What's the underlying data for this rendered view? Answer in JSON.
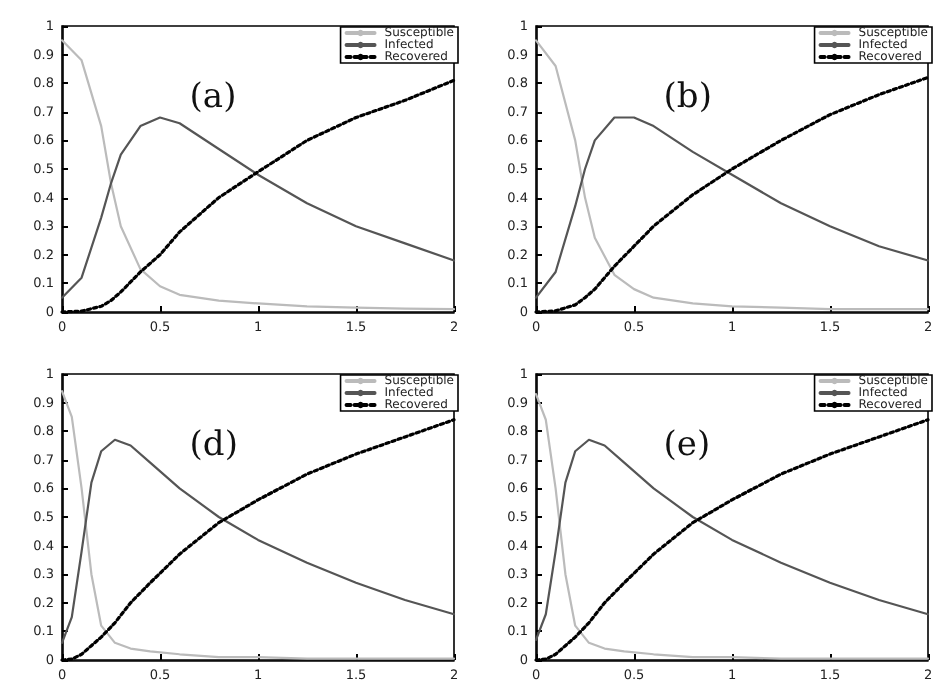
{
  "chart_data": [
    {
      "type": "line",
      "annotations": [
        "(a)"
      ],
      "x": [
        0,
        0.1,
        0.2,
        0.25,
        0.3,
        0.4,
        0.5,
        0.6,
        0.8,
        1,
        1.25,
        1.5,
        1.75,
        2
      ],
      "xlim": [
        0,
        2
      ],
      "xticks": [
        0,
        0.5,
        1,
        1.5,
        2
      ],
      "ylim": [
        0,
        1
      ],
      "yticks": [
        0,
        0.1,
        0.2,
        0.3,
        0.4,
        0.5,
        0.6,
        0.7,
        0.8,
        0.9,
        1
      ],
      "legend": "top right",
      "marker": "none",
      "series": [
        {
          "name": "Susceptible",
          "color": "#bbbbbb",
          "values": [
            0.95,
            0.88,
            0.65,
            0.45,
            0.3,
            0.15,
            0.09,
            0.06,
            0.04,
            0.03,
            0.02,
            0.015,
            0.012,
            0.01
          ]
        },
        {
          "name": "Infected",
          "color": "#555555",
          "values": [
            0.05,
            0.12,
            0.33,
            0.45,
            0.55,
            0.65,
            0.68,
            0.66,
            0.57,
            0.48,
            0.38,
            0.3,
            0.24,
            0.18
          ]
        },
        {
          "name": "Recovered",
          "color": "#000000",
          "line_style": "dotted",
          "values": [
            0,
            0.003,
            0.02,
            0.04,
            0.07,
            0.14,
            0.2,
            0.28,
            0.4,
            0.49,
            0.6,
            0.68,
            0.74,
            0.81
          ]
        }
      ]
    },
    {
      "type": "line",
      "annotations": [
        "(b)"
      ],
      "x": [
        0,
        0.1,
        0.2,
        0.25,
        0.3,
        0.4,
        0.5,
        0.6,
        0.8,
        1,
        1.25,
        1.5,
        1.75,
        2
      ],
      "xlim": [
        0,
        2
      ],
      "xticks": [
        0,
        0.5,
        1,
        1.5,
        2
      ],
      "ylim": [
        0,
        1
      ],
      "yticks": [
        0,
        0.1,
        0.2,
        0.3,
        0.4,
        0.5,
        0.6,
        0.7,
        0.8,
        0.9,
        1
      ],
      "legend": "top right",
      "marker": "none",
      "series": [
        {
          "name": "Susceptible",
          "color": "#bbbbbb",
          "values": [
            0.95,
            0.86,
            0.6,
            0.4,
            0.26,
            0.13,
            0.08,
            0.05,
            0.03,
            0.02,
            0.015,
            0.01,
            0.01,
            0.01
          ]
        },
        {
          "name": "Infected",
          "color": "#555555",
          "values": [
            0.05,
            0.14,
            0.37,
            0.5,
            0.6,
            0.68,
            0.68,
            0.65,
            0.56,
            0.48,
            0.38,
            0.3,
            0.23,
            0.18
          ]
        },
        {
          "name": "Recovered",
          "color": "#000000",
          "line_style": "dotted",
          "values": [
            0,
            0.004,
            0.025,
            0.05,
            0.08,
            0.16,
            0.23,
            0.3,
            0.41,
            0.5,
            0.6,
            0.69,
            0.76,
            0.82
          ]
        }
      ]
    },
    {
      "type": "line",
      "annotations": [
        "(d)"
      ],
      "x": [
        0,
        0.05,
        0.1,
        0.15,
        0.2,
        0.27,
        0.35,
        0.45,
        0.6,
        0.8,
        1,
        1.25,
        1.5,
        1.75,
        2
      ],
      "xlim": [
        0,
        2
      ],
      "xticks": [
        0,
        0.5,
        1,
        1.5,
        2
      ],
      "ylim": [
        0,
        1
      ],
      "yticks": [
        0,
        0.1,
        0.2,
        0.3,
        0.4,
        0.5,
        0.6,
        0.7,
        0.8,
        0.9,
        1
      ],
      "legend": "top right",
      "marker": "none",
      "series": [
        {
          "name": "Susceptible",
          "color": "#bbbbbb",
          "values": [
            0.94,
            0.85,
            0.6,
            0.3,
            0.12,
            0.06,
            0.04,
            0.03,
            0.02,
            0.01,
            0.01,
            0.005,
            0.005,
            0.005,
            0.005
          ]
        },
        {
          "name": "Infected",
          "color": "#555555",
          "values": [
            0.06,
            0.15,
            0.38,
            0.62,
            0.73,
            0.77,
            0.75,
            0.69,
            0.6,
            0.5,
            0.42,
            0.34,
            0.27,
            0.21,
            0.16
          ]
        },
        {
          "name": "Recovered",
          "color": "#000000",
          "line_style": "dotted",
          "values": [
            0,
            0.003,
            0.02,
            0.05,
            0.08,
            0.13,
            0.2,
            0.27,
            0.37,
            0.48,
            0.56,
            0.65,
            0.72,
            0.78,
            0.84
          ]
        }
      ]
    },
    {
      "type": "line",
      "annotations": [
        "(e)"
      ],
      "x": [
        0,
        0.05,
        0.1,
        0.15,
        0.2,
        0.27,
        0.35,
        0.45,
        0.6,
        0.8,
        1,
        1.25,
        1.5,
        1.75,
        2
      ],
      "xlim": [
        0,
        2
      ],
      "xticks": [
        0,
        0.5,
        1,
        1.5,
        2
      ],
      "ylim": [
        0,
        1
      ],
      "yticks": [
        0,
        0.1,
        0.2,
        0.3,
        0.4,
        0.5,
        0.6,
        0.7,
        0.8,
        0.9,
        1
      ],
      "legend": "top right",
      "marker": "none",
      "series": [
        {
          "name": "Susceptible",
          "color": "#bbbbbb",
          "values": [
            0.93,
            0.84,
            0.6,
            0.3,
            0.12,
            0.06,
            0.04,
            0.03,
            0.02,
            0.01,
            0.01,
            0.005,
            0.005,
            0.005,
            0.005
          ]
        },
        {
          "name": "Infected",
          "color": "#555555",
          "values": [
            0.07,
            0.16,
            0.38,
            0.62,
            0.73,
            0.77,
            0.75,
            0.69,
            0.6,
            0.5,
            0.42,
            0.34,
            0.27,
            0.21,
            0.16
          ]
        },
        {
          "name": "Recovered",
          "color": "#000000",
          "line_style": "dotted",
          "values": [
            0,
            0.003,
            0.02,
            0.05,
            0.08,
            0.13,
            0.2,
            0.27,
            0.37,
            0.48,
            0.56,
            0.65,
            0.72,
            0.78,
            0.84
          ]
        }
      ]
    }
  ]
}
